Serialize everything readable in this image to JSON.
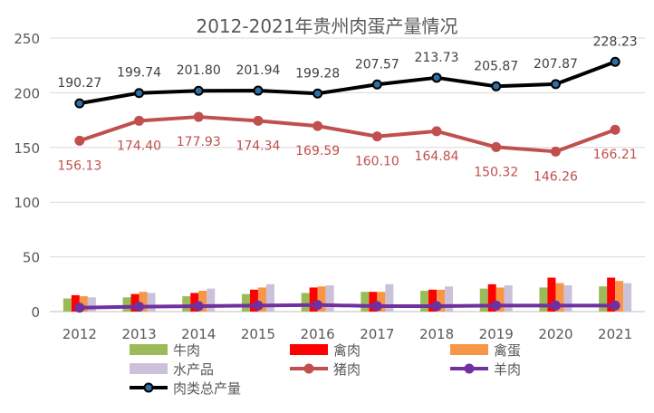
{
  "chart_data": {
    "type": "bar",
    "title": "2012-2021年贵州肉蛋产量情况",
    "categories": [
      "2012",
      "2013",
      "2014",
      "2015",
      "2016",
      "2017",
      "2018",
      "2019",
      "2020",
      "2021"
    ],
    "ylim": [
      0,
      250
    ],
    "yticks": [
      0,
      50,
      100,
      150,
      200,
      250
    ],
    "grid": true,
    "legend_position": "bottom",
    "series": [
      {
        "name": "牛肉",
        "kind": "bar",
        "color": "#9bbb59",
        "values": [
          12,
          13,
          14,
          16,
          17,
          18,
          19,
          21,
          22,
          23
        ]
      },
      {
        "name": "禽肉",
        "kind": "bar",
        "color": "#ff0000",
        "values": [
          15,
          16,
          17,
          20,
          22,
          18,
          20,
          25,
          31,
          31
        ]
      },
      {
        "name": "禽蛋",
        "kind": "bar",
        "color": "#f79646",
        "values": [
          14,
          18,
          19,
          22,
          23,
          18,
          20,
          22,
          26,
          28
        ]
      },
      {
        "name": "水产品",
        "kind": "bar",
        "color": "#ccc1da",
        "values": [
          13,
          17,
          21,
          25,
          24,
          25,
          23,
          24,
          24,
          26
        ]
      },
      {
        "name": "猪肉",
        "kind": "line",
        "color": "#c0504d",
        "values": [
          156.13,
          174.4,
          177.93,
          174.34,
          169.59,
          160.1,
          164.84,
          150.32,
          146.26,
          166.21
        ],
        "labels": [
          "156.13",
          "174.40",
          "177.93",
          "174.34",
          "169.59",
          "160.10",
          "164.84",
          "150.32",
          "146.26",
          "166.21"
        ]
      },
      {
        "name": "羊肉",
        "kind": "line",
        "color": "#7030a0",
        "values": [
          3.5,
          4.5,
          5,
          5.5,
          6,
          5,
          5,
          5.5,
          5.5,
          5.5
        ]
      },
      {
        "name": "肉类总产量",
        "kind": "line",
        "color": "#000000",
        "values": [
          190.27,
          199.74,
          201.8,
          201.94,
          199.28,
          207.57,
          213.73,
          205.87,
          207.87,
          228.23
        ],
        "labels": [
          "190.27",
          "199.74",
          "201.80",
          "201.94",
          "199.28",
          "207.57",
          "213.73",
          "205.87",
          "207.87",
          "228.23"
        ]
      }
    ]
  }
}
